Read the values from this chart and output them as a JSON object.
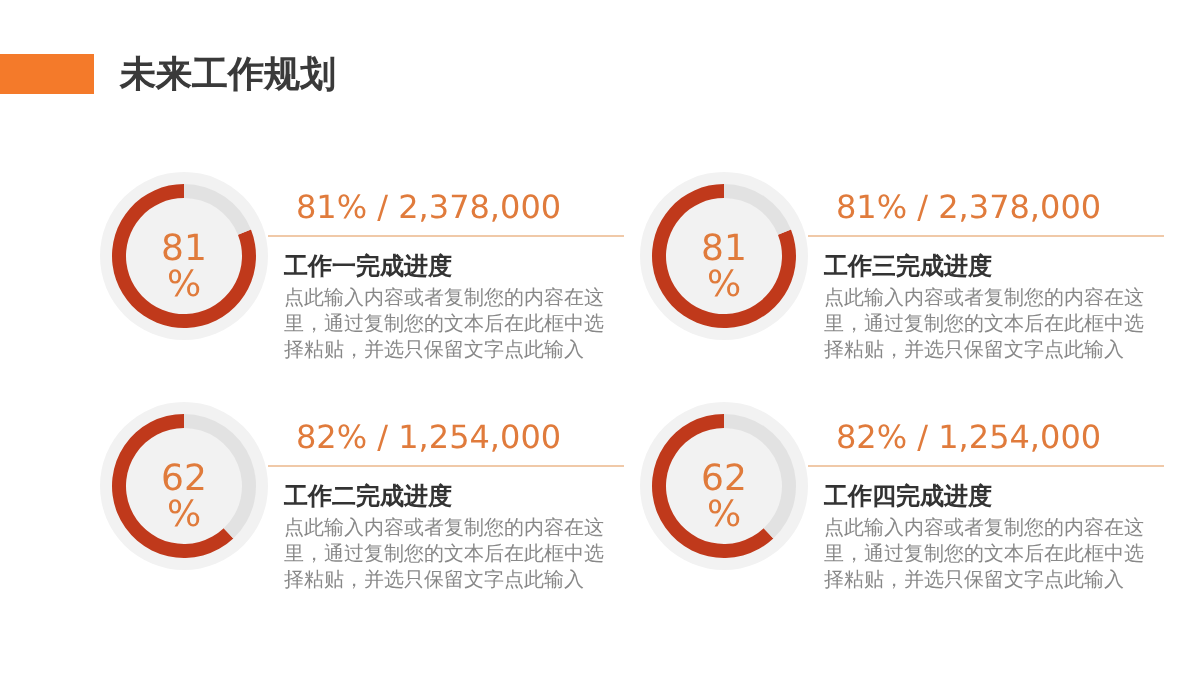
{
  "chart_data": [
    {
      "type": "other",
      "title": "未来工作规划"
    },
    {
      "type": "donut",
      "title": "工作一完成进度",
      "subtitle": "81% / 2,378,000",
      "categories": [
        null,
        null
      ],
      "values": [
        81,
        19
      ],
      "colors": [
        "#c0391b",
        "#e2e2e2"
      ],
      "value_labels": [
        "81%",
        null
      ],
      "annotations": [
        "点此输入内容或者复制您的内容在这里，通过复制您的文本后在此框中选择粘贴，并选只保留文字点此输入"
      ]
    },
    {
      "type": "donut",
      "title": "工作三完成进度",
      "subtitle": "81% / 2,378,000",
      "categories": [
        null,
        null
      ],
      "values": [
        81,
        19
      ],
      "colors": [
        "#c0391b",
        "#e2e2e2"
      ],
      "value_labels": [
        "81%",
        null
      ],
      "annotations": [
        "点此输入内容或者复制您的内容在这里，通过复制您的文本后在此框中选择粘贴，并选只保留文字点此输入"
      ]
    },
    {
      "type": "donut",
      "title": "工作二完成进度",
      "subtitle": "82% / 1,254,000",
      "categories": [
        null,
        null
      ],
      "values": [
        62,
        38
      ],
      "colors": [
        "#c0391b",
        "#e2e2e2"
      ],
      "value_labels": [
        "62%",
        null
      ],
      "annotations": [
        "点此输入内容或者复制您的内容在这里，通过复制您的文本后在此框中选择粘贴，并选只保留文字点此输入"
      ]
    },
    {
      "type": "donut",
      "title": "工作四完成进度",
      "subtitle": "82% / 1,254,000",
      "categories": [
        null,
        null
      ],
      "values": [
        62,
        38
      ],
      "colors": [
        "#c0391b",
        "#e2e2e2"
      ],
      "value_labels": [
        "62%",
        null
      ],
      "annotations": [
        "点此输入内容或者复制您的内容在这里，通过复制您的文本后在此框中选择粘贴，并选只保留文字点此输入"
      ]
    }
  ]
}
